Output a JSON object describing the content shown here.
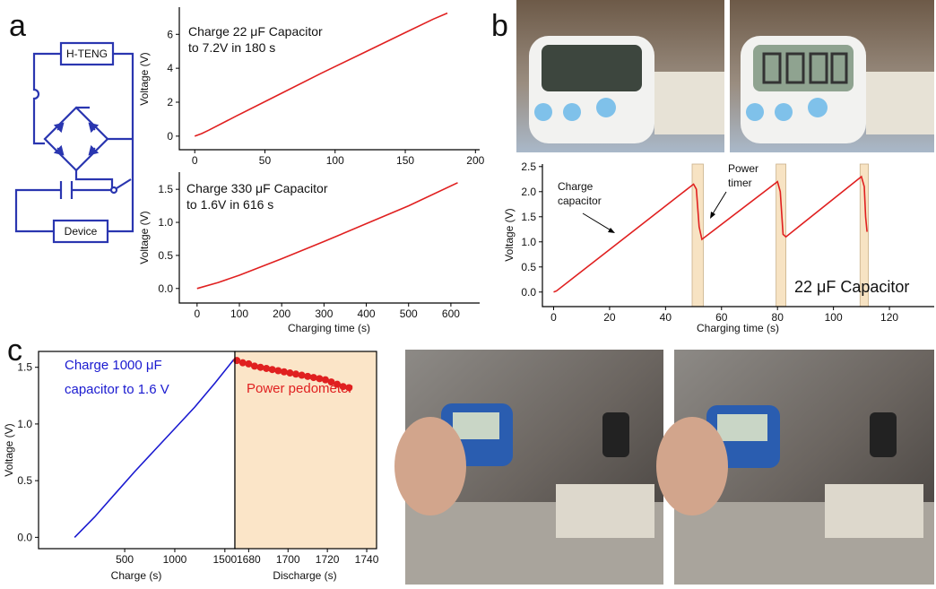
{
  "panel_labels": [
    "a",
    "b",
    "c"
  ],
  "circuit": {
    "source": "H-TENG",
    "load": "Device"
  },
  "chart_data": [
    {
      "type": "line",
      "color": "#e02020",
      "ylabel": "Voltage (V)",
      "annotations": [
        "Charge 22 μF Capacitor",
        "to 7.2V in 180 s"
      ],
      "x": [
        0,
        5,
        10,
        30,
        60,
        90,
        120,
        150,
        170,
        180
      ],
      "values": [
        0,
        0.15,
        0.35,
        1.2,
        2.45,
        3.7,
        4.9,
        6.1,
        6.9,
        7.25
      ],
      "xlim": [
        -11,
        203
      ],
      "xticks": [
        0,
        50,
        100,
        150,
        200
      ],
      "ylim": [
        -0.8,
        7.6
      ],
      "yticks": [
        0,
        2,
        4,
        6
      ]
    },
    {
      "type": "line",
      "color": "#e02020",
      "xlabel": "Charging time (s)",
      "ylabel": "Voltage (V)",
      "annotations": [
        "Charge 330 μF Capacitor",
        "to 1.6V in 616 s"
      ],
      "x": [
        0,
        50,
        100,
        200,
        300,
        400,
        500,
        616
      ],
      "values": [
        0,
        0.09,
        0.2,
        0.45,
        0.71,
        0.98,
        1.25,
        1.6
      ],
      "xlim": [
        -42,
        668
      ],
      "xticks": [
        0,
        100,
        200,
        300,
        400,
        500,
        600
      ],
      "ylim": [
        -0.22,
        1.76
      ],
      "yticks": [
        {
          "value": 0,
          "label": "0.0"
        },
        0.5,
        {
          "value": 1,
          "label": "1.0"
        },
        1.5
      ]
    },
    {
      "type": "line",
      "color": "#e02020",
      "xlabel": "Charging time (s)",
      "ylabel": "Voltage (V)",
      "annotations": [
        "Charge",
        "capacitor",
        "Power",
        "timer",
        "22 μF Capacitor"
      ],
      "spans": [
        [
          49.5,
          53.5
        ],
        [
          79.5,
          83
        ],
        [
          109.5,
          112.5
        ]
      ],
      "span_color": "#f7e3c3",
      "x": [
        0,
        1,
        50,
        51,
        52,
        53,
        80,
        81,
        82,
        83,
        110,
        111,
        111.5,
        112
      ],
      "values": [
        0,
        0.02,
        2.15,
        2.05,
        1.3,
        1.05,
        2.2,
        2.0,
        1.15,
        1.1,
        2.3,
        2.1,
        1.5,
        1.2
      ],
      "xlim": [
        -4,
        136
      ],
      "xticks": [
        0,
        20,
        40,
        60,
        80,
        100,
        120
      ],
      "ylim": [
        -0.29,
        2.55
      ],
      "yticks": [
        {
          "value": 0,
          "label": "0.0"
        },
        0.5,
        {
          "value": 1,
          "label": "1.0"
        },
        1.5,
        {
          "value": 2,
          "label": "2.0"
        },
        2.5
      ]
    },
    {
      "type": "line",
      "color": "#1a1ad0",
      "xlabel": "Charge (s)",
      "ylabel": "Voltage (V)",
      "annotations": [
        "Charge 1000 μF",
        "capacitor to 1.6 V"
      ],
      "x": [
        0,
        200,
        400,
        600,
        800,
        1000,
        1200,
        1400,
        1590
      ],
      "values": [
        0,
        0.18,
        0.38,
        0.58,
        0.77,
        0.96,
        1.15,
        1.36,
        1.57
      ],
      "xlim": [
        -360,
        1600
      ],
      "xticks": [
        500,
        1000,
        1500
      ],
      "ylim": [
        -0.1,
        1.64
      ],
      "yticks": [
        {
          "value": 0,
          "label": "0.0"
        },
        0.5,
        {
          "value": 1,
          "label": "1.0"
        },
        1.5
      ]
    },
    {
      "type": "scatter",
      "color": "#e02020",
      "background": "#fbe5c8",
      "xlabel": "Discharge (s)",
      "annotations": [
        "Power pedometer"
      ],
      "x": [
        1674,
        1677,
        1680,
        1683,
        1686,
        1689,
        1692,
        1695,
        1698,
        1701,
        1704,
        1707,
        1710,
        1713,
        1716,
        1719,
        1722,
        1725,
        1728,
        1731
      ],
      "values": [
        1.56,
        1.54,
        1.53,
        1.51,
        1.5,
        1.49,
        1.48,
        1.47,
        1.46,
        1.45,
        1.44,
        1.43,
        1.42,
        1.41,
        1.4,
        1.39,
        1.37,
        1.35,
        1.33,
        1.32
      ],
      "xlim": [
        1673,
        1745
      ],
      "xticks": [
        1680,
        1700,
        1720,
        1740
      ],
      "ylim": [
        -0.1,
        1.64
      ]
    }
  ]
}
